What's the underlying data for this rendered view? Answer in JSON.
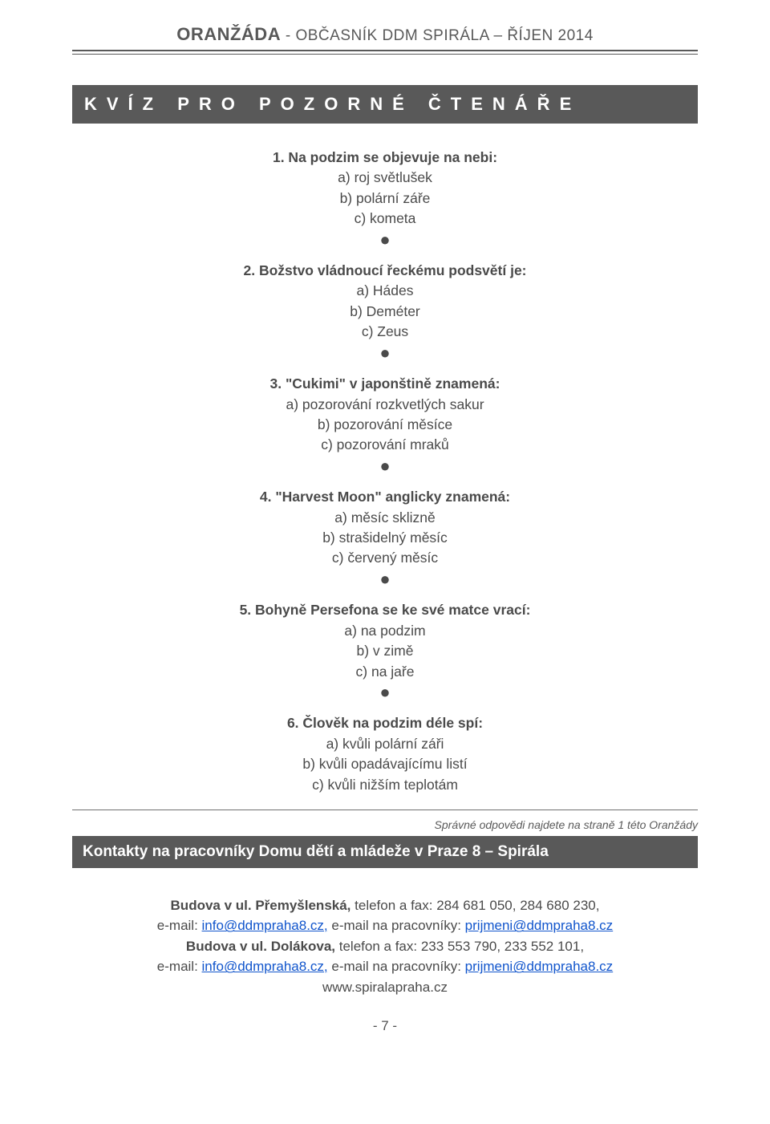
{
  "header": {
    "brand": "ORANŽÁDA",
    "sep": " - ",
    "subtitle": "OBČASNÍK DDM SPIRÁLA – ŘÍJEN 2014"
  },
  "quiz_banner": "KVÍZ PRO POZORNÉ ČTENÁŘE",
  "questions": [
    {
      "q": "1. Na podzim se objevuje na nebi:",
      "a": "a) roj světlušek",
      "b": "b) polární záře",
      "c": "c) kometa"
    },
    {
      "q": "2. Božstvo vládnoucí řeckému podsvětí je:",
      "a": "a) Hádes",
      "b": "b) Deméter",
      "c": "c) Zeus"
    },
    {
      "q": "3. \"Cukimi\" v japonštině znamená:",
      "a": "a) pozorování rozkvetlých sakur",
      "b": "b) pozorování měsíce",
      "c": "c) pozorování mraků"
    },
    {
      "q": "4. \"Harvest Moon\" anglicky znamená:",
      "a": "a) měsíc sklizně",
      "b": "b) strašidelný měsíc",
      "c": "c) červený měsíc"
    },
    {
      "q": "5. Bohyně Persefona se ke své matce vrací:",
      "a": "a) na podzim",
      "b": "b) v zimě",
      "c": "c) na jaře"
    },
    {
      "q": "6. Člověk na podzim déle spí:",
      "a": "a) kvůli polární záři",
      "b": "b) kvůli opadávajícímu listí",
      "c": "c) kvůli nižším teplotám"
    }
  ],
  "answers_note": "Správné odpovědi najdete na straně 1 této Oranžády",
  "contacts_banner": "Kontakty na pracovníky Domu dětí a mládeže v Praze 8 – Spirála",
  "contacts": {
    "b1_label": "Budova v ul. Přemyšlenská,",
    "b1_phone": " telefon a fax: 284 681 050, 284 680 230,",
    "email_prefix": "e-mail: ",
    "info_link": "info@ddmpraha8.cz,",
    "worker_prefix": " e-mail na pracovníky: ",
    "worker_link": "prijmeni@ddmpraha8.cz",
    "b2_label": "Budova v ul. Dolákova,",
    "b2_phone": " telefon a fax: 233 553 790, 233 552 101,",
    "web": "www.spiralapraha.cz"
  },
  "page_number": "- 7 -",
  "colors": {
    "banner_bg": "#595959",
    "banner_fg": "#ffffff",
    "text": "#4a4a4a",
    "link": "#1155cc"
  }
}
